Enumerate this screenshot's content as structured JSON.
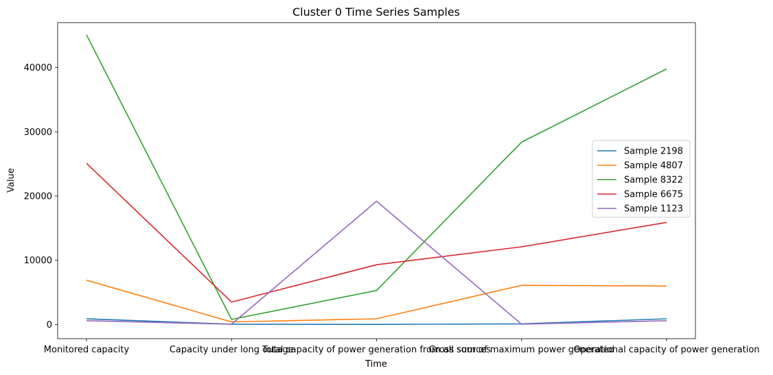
{
  "chart_data": {
    "type": "line",
    "title": "Cluster 0 Time Series Samples",
    "xlabel": "Time",
    "ylabel": "Value",
    "categories": [
      "Monitored capacity",
      "Capacity under long outage",
      "Total capacity of power generation from all sources",
      "Gross sum of maximum power generated",
      "Operational capacity of power generation"
    ],
    "ylim": [
      -2200,
      47000
    ],
    "yticks": [
      0,
      10000,
      20000,
      30000,
      40000
    ],
    "grid": false,
    "legend_position": "center-right",
    "series": [
      {
        "name": "Sample 2198",
        "color": "#1f77b4",
        "values": [
          900,
          50,
          20,
          100,
          900
        ]
      },
      {
        "name": "Sample 4807",
        "color": "#ff7f0e",
        "values": [
          6900,
          400,
          900,
          6100,
          6000
        ]
      },
      {
        "name": "Sample 8322",
        "color": "#2ca02c",
        "values": [
          45100,
          800,
          5300,
          28400,
          39800
        ]
      },
      {
        "name": "Sample 6675",
        "color": "#d62728",
        "values": [
          25100,
          3500,
          9300,
          12100,
          15900
        ]
      },
      {
        "name": "Sample 1123",
        "color": "#9467bd",
        "values": [
          600,
          50,
          19200,
          50,
          600
        ]
      }
    ]
  }
}
